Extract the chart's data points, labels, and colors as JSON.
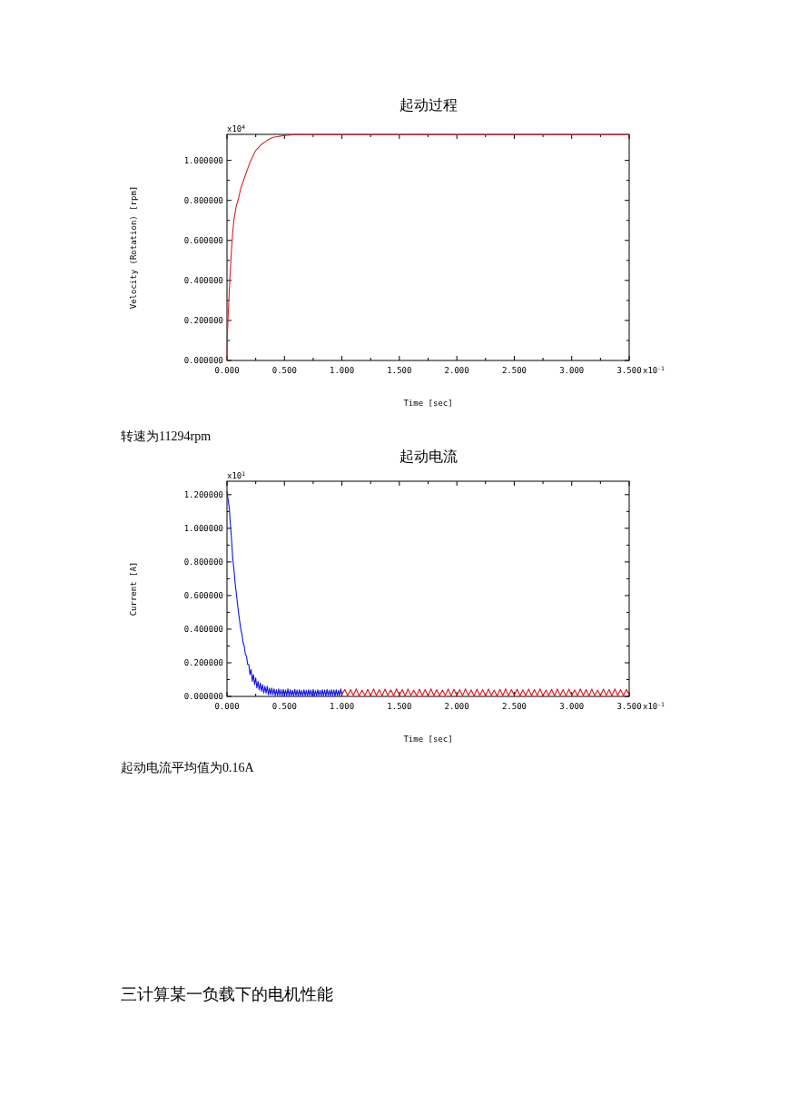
{
  "chart_data": [
    {
      "type": "line",
      "title": "起动过程",
      "xlabel": "Time [sec]",
      "ylabel": "Velocity (Rotation) [rpm]",
      "color": "#d8202a",
      "xlim": [
        0,
        3.5
      ],
      "ylim": [
        0,
        1.13
      ],
      "xticks": [
        {
          "value": 0,
          "label": "0.000"
        },
        {
          "value": 0.5,
          "label": "0.500"
        },
        {
          "value": 1,
          "label": "1.000"
        },
        {
          "value": 1.5,
          "label": "1.500"
        },
        {
          "value": 2,
          "label": "2.000"
        },
        {
          "value": 2.5,
          "label": "2.500"
        },
        {
          "value": 3,
          "label": "3.000"
        },
        {
          "value": 3.5,
          "label": "3.500"
        }
      ],
      "yticks": [
        {
          "value": 0,
          "label": "0.000000"
        },
        {
          "value": 0.2,
          "label": "0.200000"
        },
        {
          "value": 0.4,
          "label": "0.400000"
        },
        {
          "value": 0.6,
          "label": "0.600000"
        },
        {
          "value": 0.8,
          "label": "0.800000"
        },
        {
          "value": 1,
          "label": "1.000000"
        }
      ],
      "annotations": [
        "x10$^{4}$",
        "x10$^{-1}$",
        "转速为11294rpm"
      ],
      "x": [
        0,
        0.005,
        0.01,
        0.02,
        0.03,
        0.04,
        0.05,
        0.06,
        0.08,
        0.1,
        0.12,
        0.15,
        0.2,
        0.25,
        0.3,
        0.35,
        0.4,
        0.45,
        0.5,
        0.6,
        1.0,
        1.5,
        2.0,
        2.5,
        3.0,
        3.5
      ],
      "values": [
        0,
        0.15,
        0.22,
        0.35,
        0.46,
        0.56,
        0.64,
        0.7,
        0.77,
        0.81,
        0.86,
        0.91,
        0.99,
        1.05,
        1.08,
        1.1,
        1.115,
        1.12,
        1.125,
        1.129,
        1.129,
        1.129,
        1.129,
        1.129,
        1.129,
        1.129
      ]
    },
    {
      "type": "line",
      "title": "起动电流",
      "xlabel": "Time [sec]",
      "ylabel": "Current [A]",
      "xlim": [
        0,
        3.5
      ],
      "ylim": [
        0,
        1.28
      ],
      "xticks": [
        {
          "value": 0,
          "label": "0.000"
        },
        {
          "value": 0.5,
          "label": "0.500"
        },
        {
          "value": 1,
          "label": "1.000"
        },
        {
          "value": 1.5,
          "label": "1.500"
        },
        {
          "value": 2,
          "label": "2.000"
        },
        {
          "value": 2.5,
          "label": "2.500"
        },
        {
          "value": 3,
          "label": "3.000"
        },
        {
          "value": 3.5,
          "label": "3.500"
        }
      ],
      "yticks": [
        {
          "value": 0,
          "label": "0.000000"
        },
        {
          "value": 0.2,
          "label": "0.200000"
        },
        {
          "value": 0.4,
          "label": "0.400000"
        },
        {
          "value": 0.6,
          "label": "0.600000"
        },
        {
          "value": 0.8,
          "label": "0.800000"
        },
        {
          "value": 1,
          "label": "1.000000"
        },
        {
          "value": 1.2,
          "label": "1.200000"
        }
      ],
      "annotations": [
        "x10$^{1}$",
        "x10$^{-1}$",
        "起动电流平均值为0.16A",
        "三计算某一负载下的电机性能"
      ],
      "series": [
        {
          "color": "#1414e0",
          "x": [
            0,
            0.01,
            0.02,
            0.03,
            0.04,
            0.05,
            0.06,
            0.07,
            0.08,
            0.09,
            0.1,
            0.11,
            0.12,
            0.13,
            0.14,
            0.15,
            0.16,
            0.17,
            0.18,
            0.19,
            0.2,
            0.21,
            0.22,
            0.23,
            0.24,
            0.25,
            0.26,
            0.27,
            0.28,
            0.29,
            0.3,
            0.31,
            0.32,
            0.33,
            0.34,
            0.35,
            0.36,
            0.37,
            0.38,
            0.39,
            0.4,
            0.41,
            0.42,
            0.43,
            0.44,
            0.45,
            0.46,
            0.47,
            0.48,
            0.49,
            0.5,
            0.51,
            0.52,
            0.53,
            0.54,
            0.55,
            0.56,
            0.57,
            0.58,
            0.59,
            0.6,
            0.61,
            0.62,
            0.63,
            0.64,
            0.65,
            0.66,
            0.67,
            0.68,
            0.69,
            0.7,
            0.71,
            0.72,
            0.73,
            0.74,
            0.75,
            0.76,
            0.77,
            0.78,
            0.79,
            0.8,
            0.81,
            0.82,
            0.83,
            0.84,
            0.85,
            0.86,
            0.87,
            0.88,
            0.89,
            0.9,
            0.91,
            0.92,
            0.93,
            0.94,
            0.95,
            0.96,
            0.97,
            0.98,
            0.99,
            1.0
          ],
          "values": [
            1.22,
            1.17,
            1.12,
            1.02,
            0.93,
            0.82,
            0.76,
            0.68,
            0.62,
            0.56,
            0.5,
            0.45,
            0.4,
            0.37,
            0.32,
            0.3,
            0.25,
            0.24,
            0.19,
            0.19,
            0.13,
            0.16,
            0.09,
            0.13,
            0.07,
            0.11,
            0.05,
            0.09,
            0.04,
            0.08,
            0.03,
            0.07,
            0.02,
            0.06,
            0.02,
            0.06,
            0.01,
            0.05,
            0.01,
            0.05,
            0.01,
            0.045,
            0.005,
            0.04,
            0.004,
            0.045,
            0.006,
            0.04,
            0.003,
            0.042,
            0.005,
            0.038,
            0.004,
            0.045,
            0.002,
            0.04,
            0.005,
            0.036,
            0.003,
            0.042,
            0.004,
            0.038,
            0.002,
            0.04,
            0.005,
            0.035,
            0.003,
            0.04,
            0.004,
            0.036,
            0.002,
            0.04,
            0.005,
            0.038,
            0.003,
            0.042,
            0.004,
            0.035,
            0.002,
            0.04,
            0.005,
            0.036,
            0.003,
            0.04,
            0.004,
            0.038,
            0.002,
            0.042,
            0.005,
            0.036,
            0.003,
            0.04,
            0.004,
            0.038,
            0.002,
            0.04,
            0.005,
            0.036,
            0.003,
            0.045,
            0.01
          ]
        },
        {
          "color": "#e81018",
          "x": [
            1.0,
            1.025,
            1.05,
            1.075,
            1.1,
            1.125,
            1.15,
            1.175,
            1.2,
            1.225,
            1.25,
            1.275,
            1.3,
            1.325,
            1.35,
            1.375,
            1.4,
            1.425,
            1.45,
            1.475,
            1.5,
            1.525,
            1.55,
            1.575,
            1.6,
            1.625,
            1.65,
            1.675,
            1.7,
            1.725,
            1.75,
            1.775,
            1.8,
            1.825,
            1.85,
            1.875,
            1.9,
            1.925,
            1.95,
            1.975,
            2.0,
            2.025,
            2.05,
            2.075,
            2.1,
            2.125,
            2.15,
            2.175,
            2.2,
            2.225,
            2.25,
            2.275,
            2.3,
            2.325,
            2.35,
            2.375,
            2.4,
            2.425,
            2.45,
            2.475,
            2.5,
            2.525,
            2.55,
            2.575,
            2.6,
            2.625,
            2.65,
            2.675,
            2.7,
            2.725,
            2.75,
            2.775,
            2.8,
            2.825,
            2.85,
            2.875,
            2.9,
            2.925,
            2.95,
            2.975,
            3.0,
            3.025,
            3.05,
            3.075,
            3.1,
            3.125,
            3.15,
            3.175,
            3.2,
            3.225,
            3.25,
            3.275,
            3.3,
            3.325,
            3.35,
            3.375,
            3.4,
            3.425,
            3.45,
            3.475,
            3.5
          ],
          "values": [
            0.01,
            0.042,
            0.004,
            0.04,
            0.006,
            0.045,
            0.003,
            0.038,
            0.005,
            0.042,
            0.004,
            0.044,
            0.006,
            0.04,
            0.003,
            0.043,
            0.005,
            0.039,
            0.004,
            0.045,
            0.006,
            0.041,
            0.003,
            0.044,
            0.005,
            0.038,
            0.004,
            0.043,
            0.006,
            0.04,
            0.003,
            0.045,
            0.005,
            0.041,
            0.004,
            0.038,
            0.006,
            0.044,
            0.003,
            0.042,
            0.005,
            0.04,
            0.004,
            0.045,
            0.006,
            0.039,
            0.003,
            0.043,
            0.005,
            0.041,
            0.004,
            0.044,
            0.006,
            0.038,
            0.003,
            0.042,
            0.005,
            0.045,
            0.004,
            0.04,
            0.006,
            0.043,
            0.003,
            0.039,
            0.005,
            0.044,
            0.004,
            0.041,
            0.006,
            0.045,
            0.003,
            0.038,
            0.005,
            0.042,
            0.004,
            0.044,
            0.006,
            0.04,
            0.003,
            0.043,
            0.005,
            0.039,
            0.004,
            0.045,
            0.006,
            0.041,
            0.003,
            0.044,
            0.005,
            0.038,
            0.004,
            0.043,
            0.006,
            0.04,
            0.003,
            0.045,
            0.005,
            0.041,
            0.004,
            0.042,
            0.01
          ]
        }
      ]
    }
  ]
}
